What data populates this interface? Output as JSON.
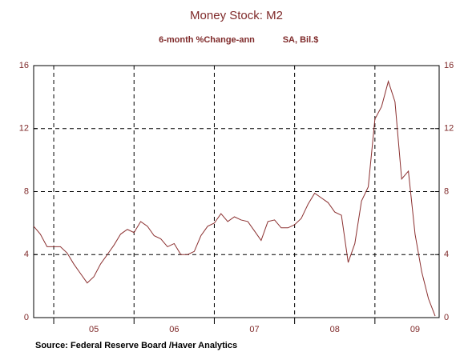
{
  "chart_data": {
    "type": "line",
    "title": "Money Stock: M2",
    "subtitle": "6-month %Change-ann",
    "subtitle2": "SA, Bil.$",
    "source": "Source:  Federal Reserve Board /Haver Analytics",
    "x": [
      2004.75,
      2004.833,
      2004.917,
      2005,
      2005.083,
      2005.167,
      2005.25,
      2005.333,
      2005.417,
      2005.5,
      2005.583,
      2005.667,
      2005.75,
      2005.833,
      2005.917,
      2006,
      2006.083,
      2006.167,
      2006.25,
      2006.333,
      2006.417,
      2006.5,
      2006.583,
      2006.667,
      2006.75,
      2006.833,
      2006.917,
      2007,
      2007.083,
      2007.167,
      2007.25,
      2007.333,
      2007.417,
      2007.5,
      2007.583,
      2007.667,
      2007.75,
      2007.833,
      2007.917,
      2008,
      2008.083,
      2008.167,
      2008.25,
      2008.333,
      2008.417,
      2008.5,
      2008.583,
      2008.667,
      2008.75,
      2008.833,
      2008.917,
      2009,
      2009.083,
      2009.167,
      2009.25,
      2009.333,
      2009.417,
      2009.5,
      2009.583,
      2009.667,
      2009.75
    ],
    "series": [
      {
        "name": "M2",
        "color": "#8b3030",
        "values": [
          5.8,
          5.3,
          4.5,
          4.5,
          4.5,
          4.1,
          3.4,
          2.8,
          2.2,
          2.6,
          3.4,
          4.0,
          4.6,
          5.3,
          5.6,
          5.4,
          6.1,
          5.8,
          5.2,
          5.0,
          4.5,
          4.7,
          4.0,
          4.0,
          4.2,
          5.2,
          5.8,
          6.0,
          6.6,
          6.1,
          6.4,
          6.2,
          6.1,
          5.5,
          4.9,
          6.1,
          6.2,
          5.7,
          5.7,
          5.9,
          6.3,
          7.2,
          7.9,
          7.6,
          7.3,
          6.7,
          6.5,
          3.5,
          4.7,
          7.4,
          8.3,
          12.6,
          13.4,
          15.0,
          13.7,
          8.8,
          9.3,
          5.3,
          2.9,
          1.2,
          0.1
        ]
      }
    ],
    "xlim": [
      2004.75,
      2009.8
    ],
    "xticks": [
      {
        "value": 2005.5,
        "label": "05"
      },
      {
        "value": 2006.5,
        "label": "06"
      },
      {
        "value": 2007.5,
        "label": "07"
      },
      {
        "value": 2008.5,
        "label": "08"
      },
      {
        "value": 2009.5,
        "label": "09"
      }
    ],
    "xgrid": [
      2005,
      2006,
      2007,
      2008,
      2009
    ],
    "ylim": [
      0,
      16
    ],
    "yticks": [
      0,
      4,
      8,
      12,
      16
    ],
    "grid": true
  }
}
